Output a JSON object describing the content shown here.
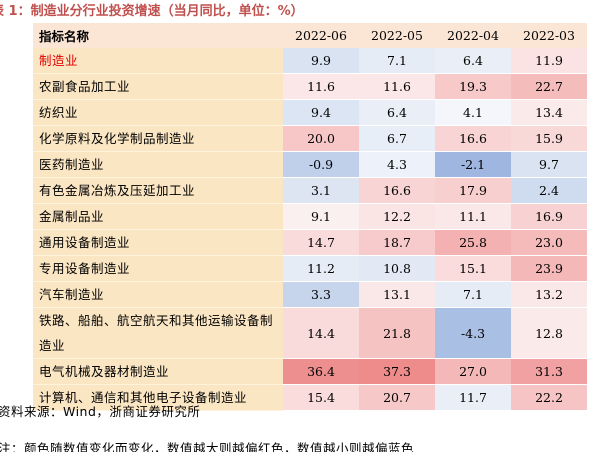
{
  "title": "表 1：制造业分行业投资增速（当月同比，单位：%）",
  "table": {
    "header_name": "指标名称",
    "columns": [
      "2022-06",
      "2022-05",
      "2022-04",
      "2022-03"
    ],
    "rows": [
      {
        "name": "制造业",
        "values": [
          "9.9",
          "7.1",
          "6.4",
          "11.9"
        ],
        "colors": [
          "#d9e3f2",
          "#e6ecf6",
          "#eaeff7",
          "#fbe3e3"
        ],
        "highlight": true
      },
      {
        "name": "农副食品加工业",
        "values": [
          "11.6",
          "11.6",
          "19.3",
          "22.7"
        ],
        "colors": [
          "#fbe7e7",
          "#fbe7e7",
          "#f7c9c9",
          "#f5bcbc"
        ]
      },
      {
        "name": "纺织业",
        "values": [
          "9.4",
          "6.4",
          "4.1",
          "13.4"
        ],
        "colors": [
          "#dce5f3",
          "#eaeff7",
          "#f4f6fb",
          "#faeaea"
        ]
      },
      {
        "name": "化学原料及化学制品制造业",
        "values": [
          "20.0",
          "6.7",
          "16.6",
          "15.9"
        ],
        "colors": [
          "#f7c6c6",
          "#e8eef7",
          "#f8d4d4",
          "#f9d8d8"
        ]
      },
      {
        "name": "医药制造业",
        "values": [
          "-0.9",
          "4.3",
          "-2.1",
          "9.7"
        ],
        "colors": [
          "#c0d0eb",
          "#edf1f9",
          "#9fb7e0",
          "#dae3f2"
        ]
      },
      {
        "name": "有色金属冶炼及压延加工业",
        "values": [
          "3.1",
          "16.6",
          "17.9",
          "2.4"
        ],
        "colors": [
          "#dde5f3",
          "#f8d4d4",
          "#f7cfcf",
          "#cfdbee"
        ]
      },
      {
        "name": "金属制品业",
        "values": [
          "9.1",
          "12.2",
          "11.1",
          "16.9"
        ],
        "colors": [
          "#fbf0f0",
          "#fae4e4",
          "#fae8e8",
          "#f8d2d2"
        ]
      },
      {
        "name": "通用设备制造业",
        "values": [
          "14.7",
          "18.7",
          "25.8",
          "23.0"
        ],
        "colors": [
          "#f9dbdb",
          "#f7cbcb",
          "#f3b1b1",
          "#f5bbbb"
        ]
      },
      {
        "name": "专用设备制造业",
        "values": [
          "11.2",
          "10.8",
          "15.1",
          "23.9"
        ],
        "colors": [
          "#e5ecf6",
          "#e2e9f5",
          "#fadcdc",
          "#f5b8b8"
        ]
      },
      {
        "name": "汽车制造业",
        "values": [
          "3.3",
          "13.1",
          "7.1",
          "13.2"
        ],
        "colors": [
          "#c6d4ec",
          "#fae8e8",
          "#e6ecf6",
          "#fae7e7"
        ]
      },
      {
        "name": "铁路、船舶、航空航天和其他运输设备制造业",
        "values": [
          "14.4",
          "21.8",
          "-4.3",
          "12.8"
        ],
        "colors": [
          "#fadbdb",
          "#f6c3c3",
          "#a9bfe3",
          "#faeaea"
        ],
        "tall": true
      },
      {
        "name": "电气机械及器材制造业",
        "values": [
          "36.4",
          "37.3",
          "27.0",
          "31.3"
        ],
        "colors": [
          "#ee8f8f",
          "#ee8b8b",
          "#f4b8b8",
          "#f1a1a1"
        ]
      },
      {
        "name": "计算机、通信和其他电子设备制造业",
        "values": [
          "15.4",
          "20.7",
          "11.7",
          "22.2"
        ],
        "colors": [
          "#fadcdc",
          "#f7c8c8",
          "#e9eef7",
          "#f6c4c4"
        ]
      }
    ]
  },
  "source": "资料来源：Wind，浙商证券研究所",
  "note": "注：颜色随数值变化而变化，数值越大则越偏红色，数值越小则越偏蓝色"
}
